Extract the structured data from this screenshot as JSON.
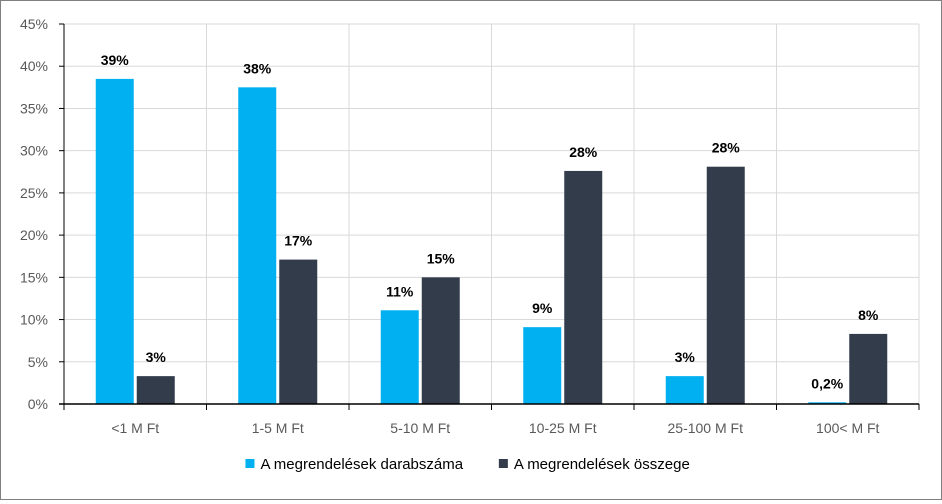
{
  "chart_data": {
    "type": "bar",
    "categories": [
      "<1 M Ft",
      "1-5 M Ft",
      "5-10 M Ft",
      "10-25 M Ft",
      "25-100 M Ft",
      "100< M Ft"
    ],
    "series": [
      {
        "name": "A megrendelések darabszáma",
        "color": "#00b0f0",
        "values": [
          38.5,
          37.5,
          11.1,
          9.1,
          3.3,
          0.2
        ],
        "labels": [
          "39%",
          "38%",
          "11%",
          "9%",
          "3%",
          "0,2%"
        ]
      },
      {
        "name": "A megrendelések összege",
        "color": "#323c4b",
        "values": [
          3.3,
          17.1,
          15.0,
          27.6,
          28.1,
          8.3
        ],
        "labels": [
          "3%",
          "17%",
          "15%",
          "28%",
          "28%",
          "8%"
        ]
      }
    ],
    "ylim": [
      0,
      45
    ],
    "yticks": [
      "0%",
      "5%",
      "10%",
      "15%",
      "20%",
      "25%",
      "30%",
      "35%",
      "40%",
      "45%"
    ],
    "grid": true,
    "legend_position": "bottom"
  }
}
